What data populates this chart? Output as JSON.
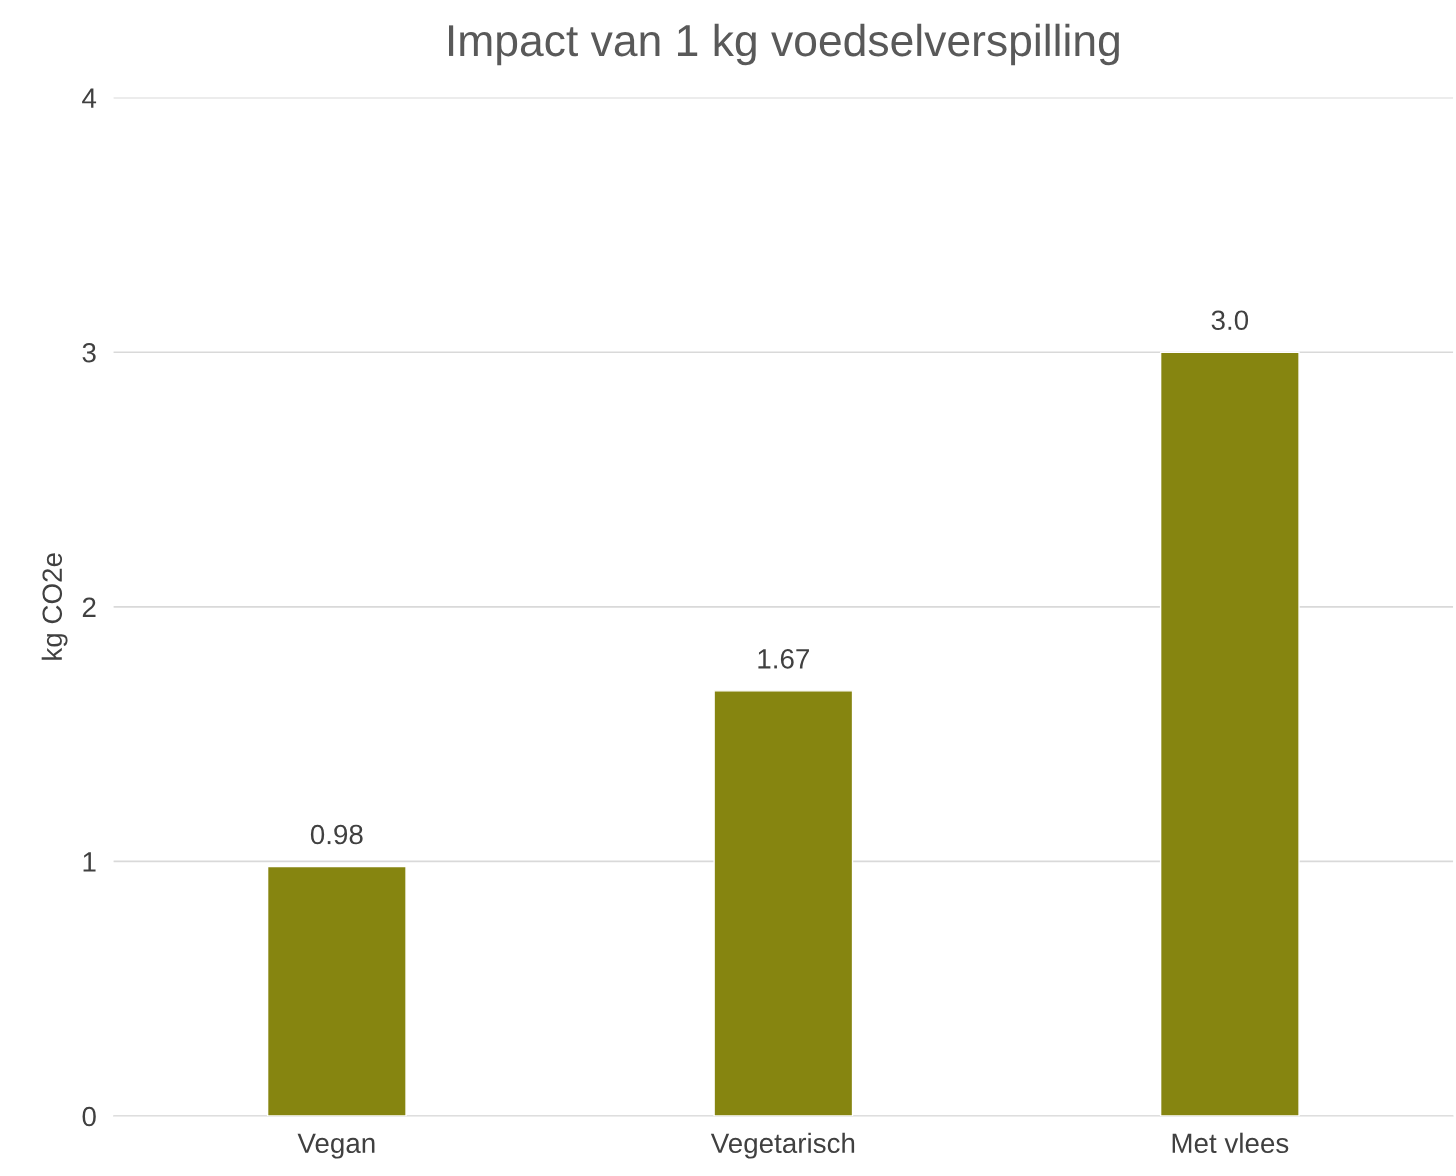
{
  "chart_data": {
    "type": "bar",
    "title": "Impact van 1 kg voedselverspilling",
    "ylabel": "kg CO2e",
    "categories": [
      "Vegan",
      "Vegetarisch",
      "Met vlees"
    ],
    "values": [
      0.98,
      1.67,
      3.0
    ],
    "value_labels": [
      "0.98",
      "1.67",
      "3.0"
    ],
    "color": "#868510",
    "ylim": [
      0,
      4
    ],
    "yticks": [
      0,
      1,
      2,
      3,
      4
    ],
    "grid": "y"
  }
}
